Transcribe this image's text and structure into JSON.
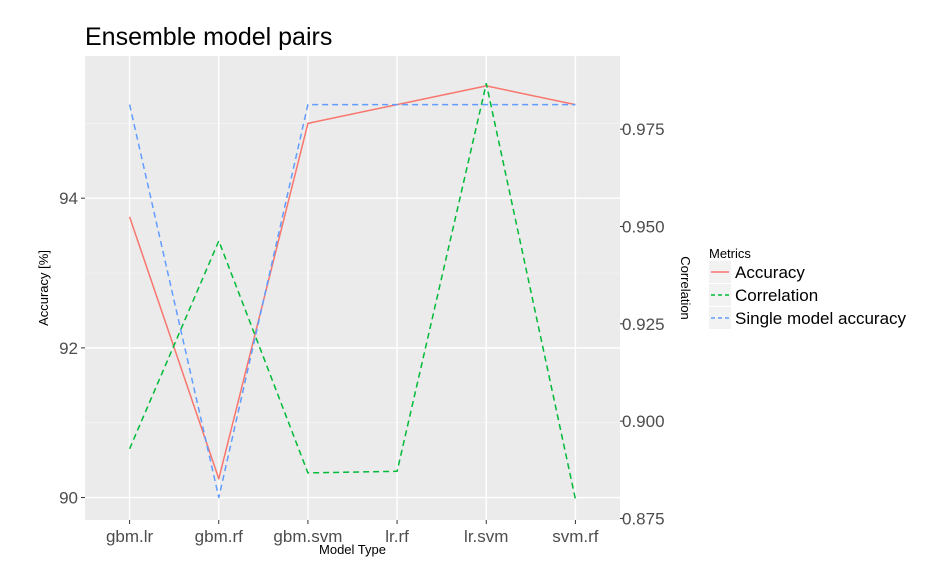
{
  "chart_data": {
    "type": "line",
    "title": "Ensemble model pairs",
    "xlabel": "Model Type",
    "ylabel": "Accuracy [%]",
    "y2label": "Correlation",
    "categories": [
      "gbm.lr",
      "gbm.rf",
      "gbm.svm",
      "lr.rf",
      "lr.svm",
      "svm.rf"
    ],
    "ylim": [
      89.7,
      95.9
    ],
    "y2lim": [
      0.8746,
      0.9938
    ],
    "yticks": [
      90,
      92,
      94
    ],
    "y2ticks": [
      0.875,
      0.9,
      0.925,
      0.95,
      0.975
    ],
    "y2tick_labels": [
      "0.875",
      "0.900",
      "0.925",
      "0.950",
      "0.975"
    ],
    "grid": true,
    "legend": {
      "title": "Metrics",
      "position": "right"
    },
    "series": [
      {
        "name": "Accuracy",
        "axis": "left",
        "color": "#F8766D",
        "dash": "solid",
        "values": [
          93.75,
          90.25,
          95.0,
          95.25,
          95.5,
          95.25
        ]
      },
      {
        "name": "Correlation",
        "axis": "right",
        "color": "#00BA38",
        "dash": "dashed",
        "values": [
          0.8929,
          0.9463,
          0.8867,
          0.8871,
          0.9867,
          0.88
        ]
      },
      {
        "name": "Single model accuracy",
        "axis": "left",
        "color": "#619CFF",
        "dash": "dashed",
        "values": [
          95.25,
          90.0,
          95.25,
          95.25,
          95.25,
          95.25
        ]
      }
    ]
  }
}
